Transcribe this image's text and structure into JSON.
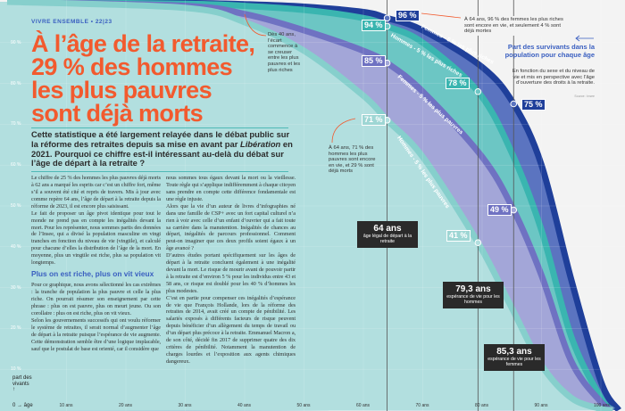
{
  "header": {
    "kicker": "VIVRE ENSEMBLE  •  22|23"
  },
  "title": "À l’âge de la retraite, 29 % des hommes les plus pauvres sont déjà morts",
  "intro": {
    "before": "Cette statistique a été largement relayée dans le débat public sur la réforme des retraites depuis sa mise en avant par ",
    "italic": "Libération",
    "after": " en 2021. Pourquoi ce chiffre est-il intéressant au-delà du débat sur l’âge de départ à la retraite ?"
  },
  "body": {
    "col1": [
      "Le chiffre de 25 % des hommes les plus pauvres déjà morts à 62 ans a marqué les esprits car c’est un chiffre fort, même s’il a souvent été cité et repris de travers. Mis à jour avec comme repère 64 ans, l’âge de départ à la retraite depuis la réforme de 2023, il est encore plus saisissant.",
      "Le fait de proposer un âge pivot identique pour tout le monde ne prend pas en compte les inégalités devant la mort. Pour les représenter, nous sommes partis des données de l’Insee, qui a divisé la population masculine en vingt tranches en fonction du niveau de vie (vingtile), et calculé pour chacune d’elles la distribution de l’âge de la mort. En moyenne, plus un vingtile est riche, plus sa population vit longtemps."
    ],
    "subheading": "Plus on est riche, plus on vit vieux",
    "col1b": [
      "Pour ce graphique, nous avons sélectionné les cas extrêmes : la tranche de population la plus pauvre et celle la plus riche. On pourrait résumer son enseignement par cette phrase : plus on est pauvre, plus on meurt jeune. Ou son corollaire : plus on est riche, plus on vit vieux.",
      "Selon les gouvernements successifs qui ont voulu réformer le système de retraites, il serait normal d’augmenter l’âge de départ à la retraite puisque l’espérance de vie augmente. Cette démonstration semble être d’une logique implacable, sauf que le postulat de base est orienté, car il considère que"
    ],
    "col2": [
      "nous sommes tous égaux devant la mort ou la vieillesse. Toute règle qui s’applique indifféremment à chaque citoyen sans prendre en compte cette différence fondamentale est une règle injuste.",
      "Alors que la vie d’un auteur de livres d’infographies né dans une famille de CSP+ avec un fort capital culturel n’a rien à voir avec celle d’un enfant d’ouvrier qui a fait toute sa carrière dans la manutention. Inégalités de chances au départ, inégalités de parcours professionnel. Comment peut-on imaginer que ces deux profils soient égaux à un âge avancé ?",
      "D’autres études portant spécifiquement sur les âges de départ à la retraite concluent également à une inégalité devant la mort. Le risque de mourir avant de pouvoir partir à la retraite est d’environ 5 % pour les individus entre 43 et 58 ans, ce risque est doublé pour les 40 % d’hommes les plus modestes.",
      "C’est en partie pour compenser ces inégalités d’espérance de vie que François Hollande, lors de la réforme des retraites de 2014, avait créé un compte de pénibilité. Les salariés exposés à différents facteurs de risque peuvent depuis bénéficier d’un allègement du temps de travail ou d’un départ plus précoce à la retraite. Emmanuel Macron a, de son côté, décidé fin 2017 de supprimer quatre des dix critères de pénibilité. Notamment la manutention de charges lourdes et l’exposition aux agents chimiques dangereux."
    ]
  },
  "annotations": {
    "gap": "Dès 40 ans, l’écart commence à se creuser entre les plus pauvres et les plus riches",
    "women_rich": "À 64 ans, 96 % des femmes les plus riches sont encore en vie, et seulement 4 % sont déjà mortes",
    "men_poor": "À 64 ans, 71 % des hommes les plus pauvres sont encore en vie, et 29 % sont déjà morts"
  },
  "legend": {
    "title": "Part des survivants dans la population pour chaque âge",
    "description": "En fonction du sexe et du niveau de vie et mis en perspective avec l’âge d’ouverture des droits à la retraite.",
    "source": "Source : Insee"
  },
  "markers": [
    {
      "big": "64 ans",
      "small": "âge légal de départ à la retraite"
    },
    {
      "big": "79,3 ans",
      "small": "espérance de vie pour les hommes"
    },
    {
      "big": "85,3 ans",
      "small": "espérance de vie pour les femmes"
    }
  ],
  "value_labels": [
    "96 %",
    "94 %",
    "85 %",
    "78 %",
    "75 %",
    "71 %",
    "49 %",
    "41 %"
  ],
  "axis": {
    "y_title": "part des vivants",
    "y_arrow": "↑",
    "x_origin": "0",
    "x_title": "→ âge"
  },
  "colors": {
    "accent": "#f25a2e",
    "brand_blue": "#3a5fc0",
    "background_right": "#f3f3f3"
  },
  "chart_data": {
    "type": "area",
    "title": "Part des survivants dans la population pour chaque âge",
    "xlabel": "âge",
    "ylabel": "part des vivants",
    "xlim": [
      0,
      103
    ],
    "ylim": [
      0,
      100
    ],
    "x_ticks": [
      "10 ans",
      "20 ans",
      "30 ans",
      "40 ans",
      "50 ans",
      "60 ans",
      "70 ans",
      "80 ans",
      "90 ans",
      "100 ans"
    ],
    "y_ticks": [
      "90 %",
      "80 %",
      "70 %",
      "60 %",
      "50 %",
      "40 %",
      "30 %",
      "20 %",
      "10 %"
    ],
    "grid": true,
    "reference_lines": [
      64,
      79.3,
      85.3
    ],
    "series": [
      {
        "name": "Femmes - 5 % les plus riches",
        "fill": "#5b74c0",
        "stroke": "#1f3f9a",
        "points": [
          [
            0,
            100
          ],
          [
            30,
            99.7
          ],
          [
            40,
            99.4
          ],
          [
            50,
            98.8
          ],
          [
            60,
            97.5
          ],
          [
            64,
            96
          ],
          [
            70,
            93
          ],
          [
            80,
            84
          ],
          [
            85.3,
            75
          ],
          [
            90,
            60
          ],
          [
            95,
            32
          ],
          [
            100,
            7
          ],
          [
            103,
            0
          ]
        ]
      },
      {
        "name": "Hommes - 5 % les plus riches",
        "fill": "#6cc6c4",
        "stroke": "#3ab5b0",
        "points": [
          [
            0,
            100
          ],
          [
            30,
            99.5
          ],
          [
            40,
            99
          ],
          [
            50,
            98
          ],
          [
            60,
            96
          ],
          [
            64,
            94
          ],
          [
            70,
            90
          ],
          [
            79.3,
            78
          ],
          [
            85,
            63
          ],
          [
            90,
            44
          ],
          [
            95,
            18
          ],
          [
            100,
            3
          ],
          [
            102,
            0
          ]
        ]
      },
      {
        "name": "Femmes - 5 % les plus pauvres",
        "fill": "#a3a6d8",
        "stroke": "#6f72c2",
        "points": [
          [
            0,
            100
          ],
          [
            30,
            99
          ],
          [
            40,
            97
          ],
          [
            50,
            93
          ],
          [
            60,
            88
          ],
          [
            64,
            85
          ],
          [
            70,
            78
          ],
          [
            80,
            62
          ],
          [
            85.3,
            49
          ],
          [
            90,
            33
          ],
          [
            95,
            12
          ],
          [
            100,
            2
          ],
          [
            102,
            0
          ]
        ]
      },
      {
        "name": "Hommes - 5 % les plus pauvres",
        "fill": "#b2dfdf",
        "stroke": "#86cfcc",
        "points": [
          [
            0,
            100
          ],
          [
            30,
            98.5
          ],
          [
            40,
            95
          ],
          [
            50,
            88
          ],
          [
            60,
            77
          ],
          [
            64,
            71
          ],
          [
            70,
            62
          ],
          [
            79.3,
            41
          ],
          [
            85,
            25
          ],
          [
            90,
            11
          ],
          [
            95,
            3
          ],
          [
            100,
            0.3
          ],
          [
            102,
            0
          ]
        ]
      }
    ],
    "labeled_points": [
      {
        "series": "Femmes - 5 % les plus riches",
        "x": 64,
        "y": 96
      },
      {
        "series": "Hommes - 5 % les plus riches",
        "x": 64,
        "y": 94
      },
      {
        "series": "Femmes - 5 % les plus pauvres",
        "x": 64,
        "y": 85
      },
      {
        "series": "Hommes - 5 % les plus riches",
        "x": 79.3,
        "y": 78
      },
      {
        "series": "Femmes - 5 % les plus riches",
        "x": 85.3,
        "y": 75
      },
      {
        "series": "Hommes - 5 % les plus pauvres",
        "x": 64,
        "y": 71
      },
      {
        "series": "Femmes - 5 % les plus pauvres",
        "x": 85.3,
        "y": 49
      },
      {
        "series": "Hommes - 5 % les plus pauvres",
        "x": 79.3,
        "y": 41
      }
    ]
  }
}
